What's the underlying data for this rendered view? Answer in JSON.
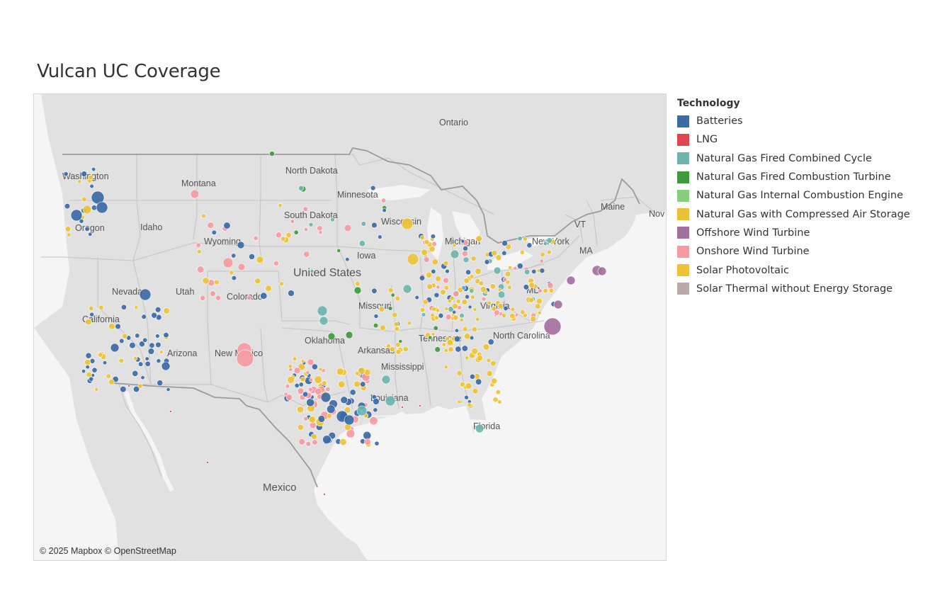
{
  "title": "Vulcan UC Coverage",
  "attribution": "© 2025 Mapbox © OpenStreetMap",
  "legend": {
    "title": "Technology",
    "items": [
      {
        "label": "Batteries",
        "color": "#3b6aa5"
      },
      {
        "label": "LNG",
        "color": "#e0464b"
      },
      {
        "label": "Natural Gas Fired Combined Cycle",
        "color": "#6bb5ae"
      },
      {
        "label": "Natural Gas Fired Combustion Turbine",
        "color": "#3f9a3c"
      },
      {
        "label": "Natural Gas Internal Combustion Engine",
        "color": "#86cf7c"
      },
      {
        "label": "Natural Gas with Compressed Air Storage",
        "color": "#ebc237"
      },
      {
        "label": "Offshore Wind Turbine",
        "color": "#a2709e"
      },
      {
        "label": "Onshore Wind Turbine",
        "color": "#f59aa2"
      },
      {
        "label": "Solar Photovoltaic",
        "color": "#edc236"
      },
      {
        "label": "Solar Thermal without Energy Storage",
        "color": "#b9aaa7"
      }
    ]
  },
  "map_labels": {
    "ontario": "Ontario",
    "washington": "Washington",
    "montana": "Montana",
    "north_dakota": "North Dakota",
    "minnesota": "Minnesota",
    "maine": "Maine",
    "nova": "Nov",
    "oregon": "Oregon",
    "idaho": "Idaho",
    "south_dakota": "South Dakota",
    "wisconsin": "Wisconsin",
    "michigan": "Michigan",
    "vermont": "VT",
    "new_york": "New York",
    "massachusetts": "MA",
    "wyoming": "Wyoming",
    "iowa": "Iowa",
    "united_states": "United States",
    "nevada": "Nevada",
    "utah": "Utah",
    "colorado": "Colorado",
    "missouri": "Missouri",
    "virginia": "Virginia",
    "maryland": "MD",
    "california": "California",
    "arizona": "Arizona",
    "new_mexico": "New Mexico",
    "oklahoma": "Oklahoma",
    "arkansas": "Arkansas",
    "tennessee": "Tennessee",
    "north_carolina": "North Carolina",
    "mississippi": "Mississippi",
    "louisiana": "Louisiana",
    "florida": "Florida",
    "mexico": "Mexico"
  }
}
